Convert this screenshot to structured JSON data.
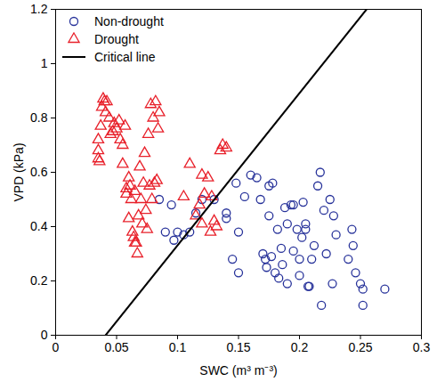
{
  "chart_data": {
    "type": "scatter",
    "x_label": "SWC (m³ m⁻³)",
    "y_label": "VPD (kPa)",
    "xlim": [
      0,
      0.3
    ],
    "ylim": [
      0,
      1.2
    ],
    "xticks": [
      0,
      0.05,
      0.1,
      0.15,
      0.2,
      0.25,
      0.3
    ],
    "yticks": [
      0,
      0.2,
      0.4,
      0.6,
      0.8,
      1,
      1.2
    ],
    "legend": "upper left",
    "series": [
      {
        "name": "Non-drought",
        "color": "#27329a",
        "type": "scatter",
        "marker": "circle",
        "x": [
          0.085,
          0.09,
          0.095,
          0.097,
          0.1,
          0.105,
          0.11,
          0.115,
          0.12,
          0.13,
          0.14,
          0.14,
          0.145,
          0.148,
          0.15,
          0.15,
          0.155,
          0.16,
          0.165,
          0.168,
          0.17,
          0.172,
          0.173,
          0.175,
          0.175,
          0.177,
          0.178,
          0.18,
          0.182,
          0.183,
          0.185,
          0.186,
          0.188,
          0.19,
          0.19,
          0.193,
          0.195,
          0.195,
          0.198,
          0.2,
          0.2,
          0.202,
          0.203,
          0.205,
          0.205,
          0.207,
          0.208,
          0.21,
          0.212,
          0.215,
          0.217,
          0.218,
          0.22,
          0.222,
          0.225,
          0.227,
          0.228,
          0.23,
          0.24,
          0.243,
          0.244,
          0.246,
          0.25,
          0.252,
          0.252,
          0.27
        ],
        "values": [
          0.5,
          0.38,
          0.48,
          0.35,
          0.38,
          0.37,
          0.38,
          0.45,
          0.5,
          0.5,
          0.45,
          0.43,
          0.28,
          0.56,
          0.38,
          0.23,
          0.51,
          0.59,
          0.58,
          0.5,
          0.3,
          0.28,
          0.25,
          0.55,
          0.44,
          0.29,
          0.56,
          0.23,
          0.39,
          0.21,
          0.32,
          0.26,
          0.47,
          0.19,
          0.41,
          0.48,
          0.48,
          0.31,
          0.39,
          0.22,
          0.28,
          0.36,
          0.49,
          0.41,
          0.39,
          0.18,
          0.18,
          0.28,
          0.33,
          0.55,
          0.6,
          0.11,
          0.46,
          0.3,
          0.5,
          0.19,
          0.44,
          0.37,
          0.28,
          0.39,
          0.33,
          0.23,
          0.19,
          0.17,
          0.11,
          0.17
        ]
      },
      {
        "name": "Drought",
        "color": "#e8202a",
        "type": "scatter",
        "marker": "triangle",
        "x": [
          0.035,
          0.035,
          0.035,
          0.036,
          0.037,
          0.038,
          0.039,
          0.04,
          0.041,
          0.042,
          0.044,
          0.045,
          0.047,
          0.048,
          0.05,
          0.052,
          0.053,
          0.055,
          0.055,
          0.057,
          0.058,
          0.058,
          0.06,
          0.06,
          0.061,
          0.062,
          0.063,
          0.064,
          0.065,
          0.065,
          0.066,
          0.067,
          0.068,
          0.069,
          0.07,
          0.071,
          0.072,
          0.073,
          0.074,
          0.075,
          0.076,
          0.077,
          0.078,
          0.079,
          0.08,
          0.081,
          0.082,
          0.083,
          0.084,
          0.085,
          0.105,
          0.11,
          0.115,
          0.118,
          0.12,
          0.12,
          0.122,
          0.125,
          0.127,
          0.128,
          0.13,
          0.132,
          0.135,
          0.137,
          0.14
        ],
        "values": [
          0.72,
          0.68,
          0.65,
          0.64,
          0.77,
          0.84,
          0.87,
          0.86,
          0.82,
          0.86,
          0.8,
          0.74,
          0.75,
          0.78,
          0.76,
          0.79,
          0.72,
          0.7,
          0.63,
          0.77,
          0.54,
          0.52,
          0.58,
          0.43,
          0.55,
          0.5,
          0.38,
          0.36,
          0.34,
          0.53,
          0.34,
          0.3,
          0.44,
          0.62,
          0.5,
          0.41,
          0.56,
          0.67,
          0.46,
          0.39,
          0.74,
          0.55,
          0.85,
          0.5,
          0.8,
          0.56,
          0.86,
          0.57,
          0.76,
          0.82,
          0.51,
          0.63,
          0.44,
          0.48,
          0.59,
          0.41,
          0.52,
          0.58,
          0.38,
          0.51,
          0.42,
          0.4,
          0.68,
          0.7,
          0.69
        ]
      },
      {
        "name": "Critical line",
        "color": "#000000",
        "type": "line",
        "line_style": "solid",
        "x": [
          0.041,
          0.255
        ],
        "values": [
          0,
          1.2
        ]
      }
    ]
  }
}
